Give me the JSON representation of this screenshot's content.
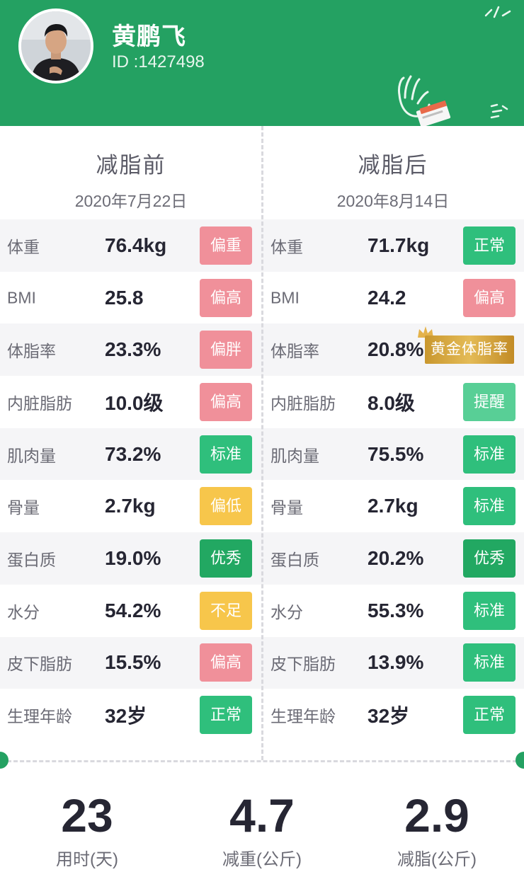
{
  "colors": {
    "brand_green": "#24a162",
    "badge_red": "#f0909a",
    "badge_green": "#2fbf7c",
    "badge_green_dark": "#22a862",
    "badge_green_light": "#58cf96",
    "badge_yellow": "#f7c64b",
    "gold": "#d4a43f"
  },
  "profile": {
    "name": "黄鹏飞",
    "id_text": "ID :1427498",
    "avatar_icon": "user-avatar"
  },
  "before": {
    "title": "减脂前",
    "date": "2020年7月22日"
  },
  "after": {
    "title": "减脂后",
    "date": "2020年8月14日"
  },
  "metrics": [
    {
      "label": "体重",
      "before_value": "76.4kg",
      "before_status": "偏重",
      "before_color": "#f0909a",
      "after_value": "71.7kg",
      "after_status": "正常",
      "after_color": "#2fbf7c"
    },
    {
      "label": "BMI",
      "before_value": "25.8",
      "before_status": "偏高",
      "before_color": "#f0909a",
      "after_value": "24.2",
      "after_status": "偏高",
      "after_color": "#f0909a"
    },
    {
      "label": "体脂率",
      "before_value": "23.3%",
      "before_status": "偏胖",
      "before_color": "#f0909a",
      "after_value": "20.8%",
      "after_status": "黄金体脂率",
      "after_color": "gold"
    },
    {
      "label": "内脏脂肪",
      "before_value": "10.0级",
      "before_status": "偏高",
      "before_color": "#f0909a",
      "after_value": "8.0级",
      "after_status": "提醒",
      "after_color": "#58cf96"
    },
    {
      "label": "肌肉量",
      "before_value": "73.2%",
      "before_status": "标准",
      "before_color": "#2fbf7c",
      "after_value": "75.5%",
      "after_status": "标准",
      "after_color": "#2fbf7c"
    },
    {
      "label": "骨量",
      "before_value": "2.7kg",
      "before_status": "偏低",
      "before_color": "#f7c64b",
      "after_value": "2.7kg",
      "after_status": "标准",
      "after_color": "#2fbf7c"
    },
    {
      "label": "蛋白质",
      "before_value": "19.0%",
      "before_status": "优秀",
      "before_color": "#22a862",
      "after_value": "20.2%",
      "after_status": "优秀",
      "after_color": "#22a862"
    },
    {
      "label": "水分",
      "before_value": "54.2%",
      "before_status": "不足",
      "before_color": "#f7c64b",
      "after_value": "55.3%",
      "after_status": "标准",
      "after_color": "#2fbf7c"
    },
    {
      "label": "皮下脂肪",
      "before_value": "15.5%",
      "before_status": "偏高",
      "before_color": "#f0909a",
      "after_value": "13.9%",
      "after_status": "标准",
      "after_color": "#2fbf7c"
    },
    {
      "label": "生理年龄",
      "before_value": "32岁",
      "before_status": "正常",
      "before_color": "#2fbf7c",
      "after_value": "32岁",
      "after_status": "正常",
      "after_color": "#2fbf7c"
    }
  ],
  "summary": [
    {
      "value": "23",
      "label": "用时(天)"
    },
    {
      "value": "4.7",
      "label": "减重(公斤)"
    },
    {
      "value": "2.9",
      "label": "减脂(公斤)"
    }
  ]
}
